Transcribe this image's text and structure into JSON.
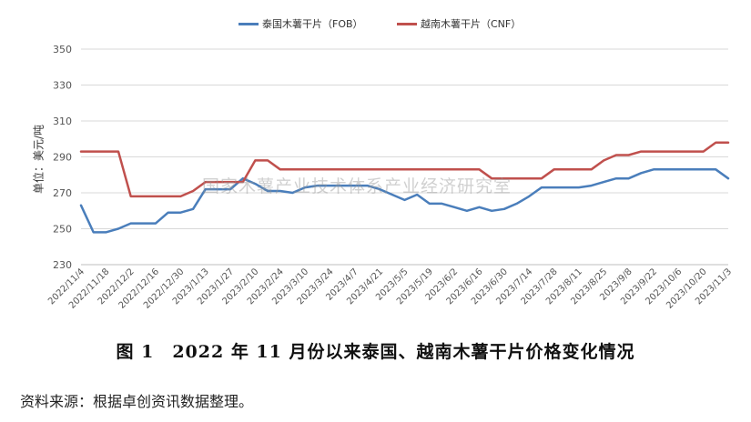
{
  "chart_data": {
    "type": "line",
    "ylabel": "单位：美元/吨",
    "ylim": [
      230,
      350
    ],
    "yticks": [
      230,
      250,
      270,
      290,
      310,
      330,
      350
    ],
    "grid": true,
    "legend_position": "top",
    "x_start": "2022/11/4",
    "x_end": "2023/11/3",
    "xtick_labels": [
      "2022/11/4",
      "2022/11/18",
      "2022/12/2",
      "2022/12/16",
      "2022/12/30",
      "2023/1/13",
      "2023/1/27",
      "2023/2/10",
      "2023/2/24",
      "2023/3/10",
      "2023/3/24",
      "2023/4/7",
      "2023/4/21",
      "2023/5/5",
      "2023/5/19",
      "2023/6/2",
      "2023/6/16",
      "2023/6/30",
      "2023/7/14",
      "2023/7/28",
      "2023/8/11",
      "2023/8/25",
      "2023/9/8",
      "2023/9/22",
      "2023/10/6",
      "2023/10/20",
      "2023/11/3"
    ],
    "x": [
      "2022/11/4",
      "2022/11/11",
      "2022/11/18",
      "2022/11/25",
      "2022/12/2",
      "2022/12/9",
      "2022/12/16",
      "2022/12/23",
      "2022/12/30",
      "2023/1/6",
      "2023/1/13",
      "2023/1/20",
      "2023/1/27",
      "2023/2/3",
      "2023/2/10",
      "2023/2/17",
      "2023/2/24",
      "2023/3/3",
      "2023/3/10",
      "2023/3/17",
      "2023/3/24",
      "2023/3/31",
      "2023/4/7",
      "2023/4/14",
      "2023/4/21",
      "2023/4/28",
      "2023/5/5",
      "2023/5/12",
      "2023/5/19",
      "2023/5/26",
      "2023/6/2",
      "2023/6/9",
      "2023/6/16",
      "2023/6/23",
      "2023/6/30",
      "2023/7/7",
      "2023/7/14",
      "2023/7/21",
      "2023/7/28",
      "2023/8/4",
      "2023/8/11",
      "2023/8/18",
      "2023/8/25",
      "2023/9/1",
      "2023/9/8",
      "2023/9/15",
      "2023/9/22",
      "2023/9/29",
      "2023/10/6",
      "2023/10/13",
      "2023/10/20",
      "2023/10/27",
      "2023/11/3"
    ],
    "series": [
      {
        "name": "泰国木薯干片（FOB）",
        "color": "#4a7ebb",
        "values": [
          263,
          248,
          248,
          250,
          253,
          253,
          253,
          259,
          259,
          261,
          272,
          272,
          272,
          278,
          275,
          271,
          271,
          270,
          273,
          274,
          274,
          274,
          274,
          274,
          272,
          269,
          266,
          269,
          264,
          264,
          262,
          260,
          262,
          260,
          261,
          264,
          268,
          273,
          273,
          273,
          273,
          274,
          276,
          278,
          278,
          281,
          283,
          283,
          283,
          283,
          283,
          283,
          278
        ]
      },
      {
        "name": "越南木薯干片（CNF）",
        "color": "#c0504d",
        "values": [
          293,
          293,
          293,
          293,
          268,
          268,
          268,
          268,
          268,
          271,
          276,
          276,
          276,
          276,
          288,
          288,
          283,
          283,
          283,
          283,
          283,
          283,
          283,
          283,
          283,
          283,
          283,
          283,
          283,
          283,
          283,
          283,
          283,
          278,
          278,
          278,
          278,
          278,
          283,
          283,
          283,
          283,
          288,
          291,
          291,
          293,
          293,
          293,
          293,
          293,
          293,
          298,
          298
        ]
      }
    ]
  },
  "watermark": "国家木薯产业技术体系产业经济研究室",
  "caption": "图 1　2022 年 11 月份以来泰国、越南木薯干片价格变化情况",
  "source": "资料来源：根据卓创资讯数据整理。"
}
